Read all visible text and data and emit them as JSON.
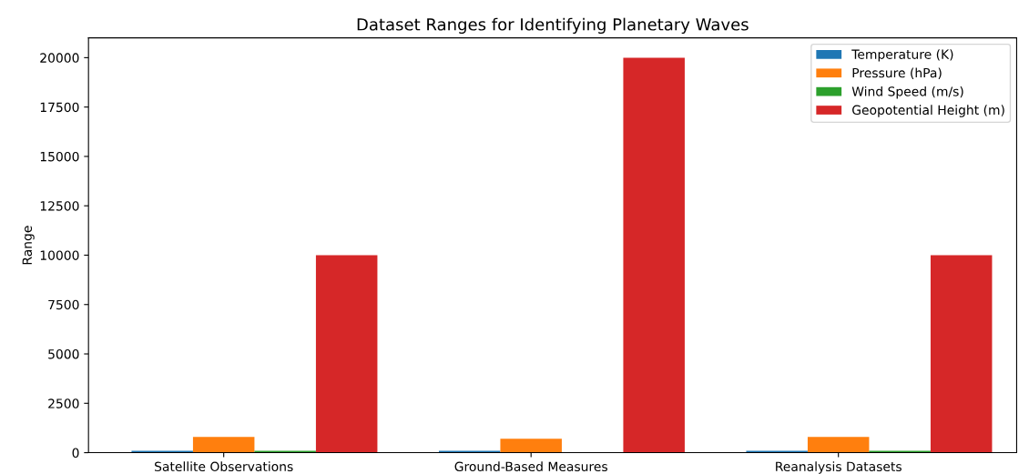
{
  "chart_data": {
    "type": "bar",
    "title": "Dataset Ranges for Identifying Planetary Waves",
    "ylabel": "Range",
    "categories": [
      "Satellite Observations",
      "Ground-Based Measures",
      "Reanalysis Datasets"
    ],
    "series": [
      {
        "name": "Temperature (K)",
        "color": "#1f77b4",
        "values": [
          100,
          100,
          100
        ]
      },
      {
        "name": "Pressure (hPa)",
        "color": "#ff7f0e",
        "values": [
          800,
          700,
          800
        ]
      },
      {
        "name": "Wind Speed (m/s)",
        "color": "#2ca02c",
        "values": [
          100,
          0,
          100
        ]
      },
      {
        "name": "Geopotential Height (m)",
        "color": "#d62728",
        "values": [
          10000,
          20000,
          10000
        ]
      }
    ],
    "ylim": [
      0,
      21000
    ],
    "yticks": [
      0,
      2500,
      5000,
      7500,
      10000,
      12500,
      15000,
      17500,
      20000
    ],
    "grid": false,
    "legend": "top right"
  }
}
